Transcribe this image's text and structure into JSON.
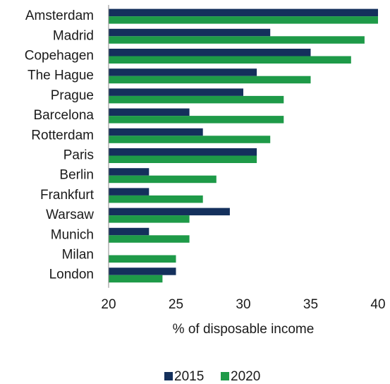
{
  "chart_data": {
    "type": "bar",
    "orientation": "horizontal",
    "categories": [
      "Amsterdam",
      "Madrid",
      "Copehagen",
      "The Hague",
      "Prague",
      "Barcelona",
      "Rotterdam",
      "Paris",
      "Berlin",
      "Frankfurt",
      "Warsaw",
      "Munich",
      "Milan",
      "London"
    ],
    "series": [
      {
        "name": "2015",
        "color": "#14305c",
        "values": [
          40,
          32,
          35,
          31,
          30,
          26,
          27,
          31,
          23,
          23,
          29,
          23,
          null,
          25
        ]
      },
      {
        "name": "2020",
        "color": "#1e9a48",
        "values": [
          40,
          39,
          38,
          35,
          33,
          33,
          32,
          31,
          28,
          27,
          26,
          26,
          25,
          24
        ]
      }
    ],
    "x_label": "% of disposable income",
    "xlim": [
      20,
      40
    ],
    "xticks": [
      20,
      25,
      30,
      35,
      40
    ],
    "legend": "bottom",
    "grid": false
  }
}
